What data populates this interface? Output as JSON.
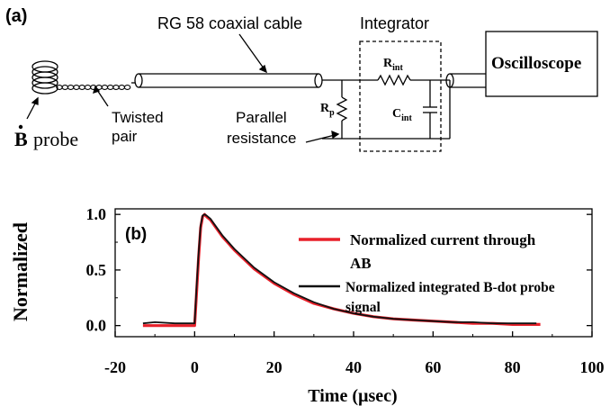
{
  "panel_a": {
    "label": "(a)",
    "cable_label": "RG 58 coaxial cable",
    "integrator_label": "Integrator",
    "oscilloscope_label": "Oscilloscope",
    "probe_label": "probe",
    "probe_symbol": "B",
    "twisted_pair_line1": "Twisted",
    "twisted_pair_line2": "pair",
    "parallel_line1": "Parallel",
    "parallel_line2": "resistance",
    "rp_main": "R",
    "rp_sub": "p",
    "rint_main": "R",
    "rint_sub": "int",
    "cint_main": "C",
    "cint_sub": "int"
  },
  "chart_data": {
    "type": "line",
    "panel_label": "(b)",
    "xlabel": "Time (µsec)",
    "ylabel": "Normalized",
    "xlim": [
      -20,
      100
    ],
    "ylim": [
      -0.1,
      1.05
    ],
    "x_ticks": [
      "-20",
      "0",
      "20",
      "40",
      "60",
      "80",
      "100"
    ],
    "y_ticks": [
      "0.0",
      "0.5",
      "1.0"
    ],
    "legend_position": "right",
    "series": [
      {
        "name": "Normalized current through AB",
        "name_line1": "Normalized current through",
        "name_line2": "AB",
        "color": "#e8202a",
        "x": [
          -13,
          -5,
          0,
          0.5,
          1,
          1.5,
          2,
          2.5,
          3,
          4,
          5,
          7,
          10,
          15,
          20,
          25,
          30,
          35,
          40,
          45,
          50,
          55,
          60,
          65,
          70,
          75,
          80,
          87
        ],
        "y": [
          0.0,
          0.0,
          0.0,
          0.3,
          0.62,
          0.88,
          0.98,
          1.0,
          0.98,
          0.95,
          0.9,
          0.8,
          0.68,
          0.51,
          0.38,
          0.28,
          0.2,
          0.15,
          0.11,
          0.08,
          0.06,
          0.05,
          0.04,
          0.03,
          0.02,
          0.02,
          0.01,
          0.01
        ]
      },
      {
        "name": "Normalized integrated B-dot probe signal",
        "name_line1": "Normalized integrated B-dot probe",
        "name_line2": "signal",
        "color": "#111111",
        "x": [
          -13,
          -10,
          -5,
          0,
          0.5,
          1,
          1.5,
          2,
          2.5,
          3,
          4,
          5,
          7,
          10,
          15,
          20,
          25,
          30,
          35,
          40,
          45,
          50,
          55,
          60,
          65,
          70,
          75,
          80,
          86
        ],
        "y": [
          0.02,
          0.03,
          0.02,
          0.02,
          0.35,
          0.66,
          0.9,
          0.99,
          1.0,
          0.99,
          0.96,
          0.91,
          0.81,
          0.69,
          0.52,
          0.39,
          0.29,
          0.21,
          0.15,
          0.11,
          0.08,
          0.06,
          0.05,
          0.04,
          0.03,
          0.03,
          0.02,
          0.02,
          0.02
        ]
      }
    ]
  }
}
